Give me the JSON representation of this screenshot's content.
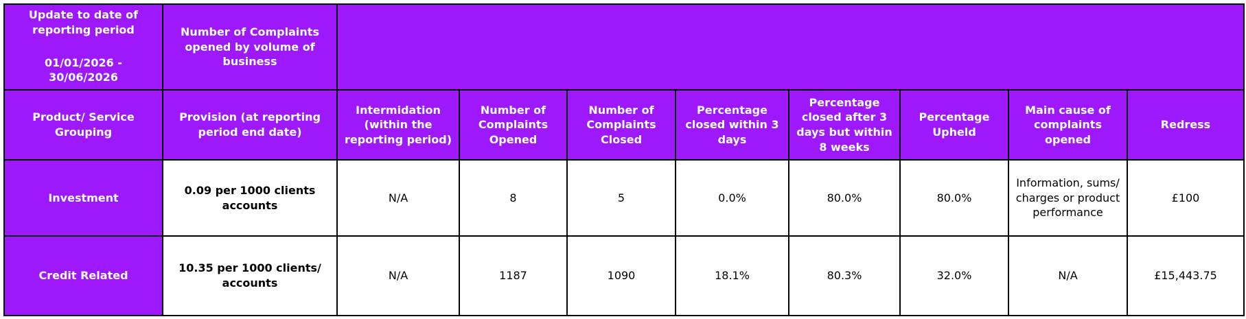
{
  "header": {
    "period_label": "Update to date of reporting period",
    "period": "01/01/2026 - 30/06/2026",
    "volume_label": "Number of Complaints opened by volume of business"
  },
  "table": {
    "columns": [
      "Product/ Service Grouping",
      "Provision (at reporting period end date)",
      "Intermidation (within the reporting period)",
      "Number of Complaints Opened",
      "Number of Complaints Closed",
      "Percentage closed within 3 days",
      "Percentage closed after 3 days but within 8 weeks",
      "Percentage Upheld",
      "Main cause of complaints opened",
      "Redress"
    ],
    "rows": [
      [
        "Investment",
        "0.09 per 1000 clients accounts",
        "N/A",
        "8",
        "5",
        "0.0%",
        "80.0%",
        "80.0%",
        "Information, sums/ charges or product performance",
        "£100"
      ],
      [
        "Credit Related",
        "10.35 per 1000 clients/ accounts",
        "N/A",
        "1187",
        "1090",
        "18.1%",
        "80.3%",
        "32.0%",
        "N/A",
        "£15,443.75"
      ]
    ]
  }
}
